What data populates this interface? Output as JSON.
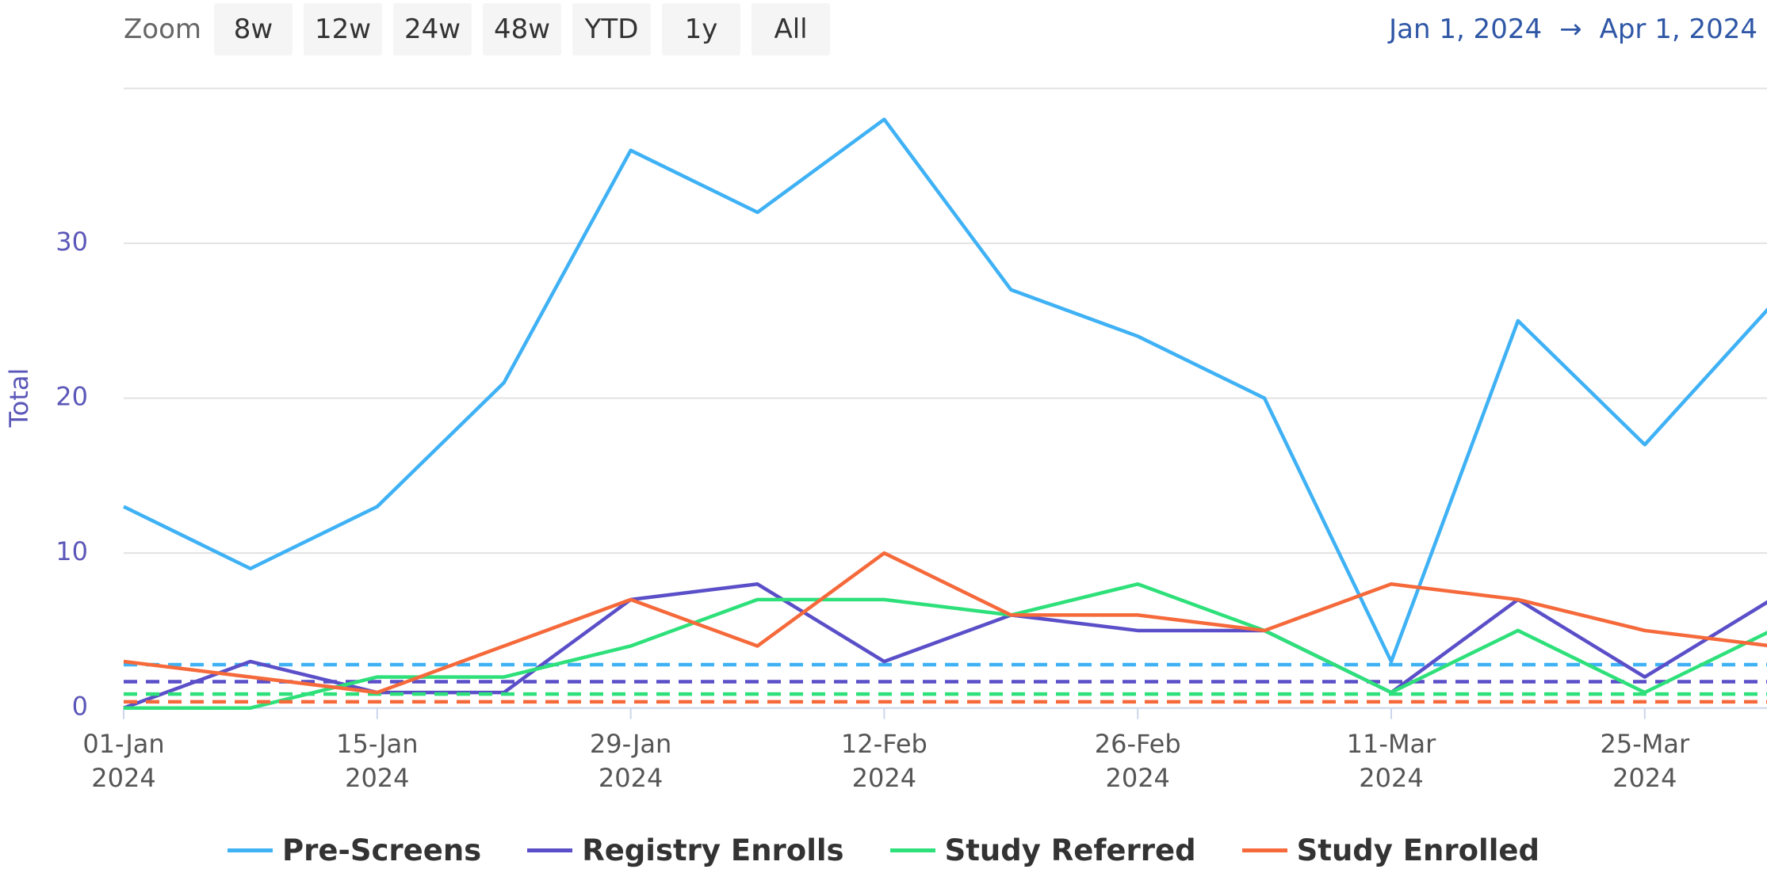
{
  "toolbar": {
    "zoom_label": "Zoom",
    "buttons": [
      "8w",
      "12w",
      "24w",
      "48w",
      "YTD",
      "1y",
      "All"
    ],
    "range_from": "Jan 1, 2024",
    "range_arrow": "→",
    "range_to": "Apr 1, 2024"
  },
  "chart_data": {
    "type": "line",
    "y_label": "Total",
    "categories": [
      "01-Jan\n2024",
      null,
      "15-Jan\n2024",
      null,
      "29-Jan\n2024",
      null,
      "12-Feb\n2024",
      null,
      "26-Feb\n2024",
      null,
      "11-Mar\n2024",
      null,
      "25-Mar\n2024",
      null
    ],
    "series": [
      {
        "name": "Pre-Screens",
        "color": "#3fb1f5",
        "values": [
          13,
          9,
          13,
          21,
          36,
          32,
          38,
          27,
          24,
          20,
          3,
          25,
          17,
          26
        ],
        "target": 2.8
      },
      {
        "name": "Registry Enrolls",
        "color": "#5a4fc8",
        "values": [
          0,
          3,
          1,
          1,
          7,
          8,
          3,
          6,
          5,
          5,
          1,
          7,
          2,
          7
        ],
        "target": 1.7
      },
      {
        "name": "Study Referred",
        "color": "#2ee07a",
        "values": [
          0,
          0,
          2,
          2,
          4,
          7,
          7,
          6,
          8,
          5,
          1,
          5,
          1,
          5
        ],
        "target": 0.9
      },
      {
        "name": "Study Enrolled",
        "color": "#f5693a",
        "values": [
          3,
          2,
          1,
          4,
          7,
          4,
          10,
          6,
          6,
          5,
          8,
          7,
          5,
          4
        ],
        "target": 0.4
      }
    ],
    "ylim": [
      0,
      40
    ],
    "yticks": [
      0,
      10,
      20,
      30
    ],
    "grid": true
  }
}
